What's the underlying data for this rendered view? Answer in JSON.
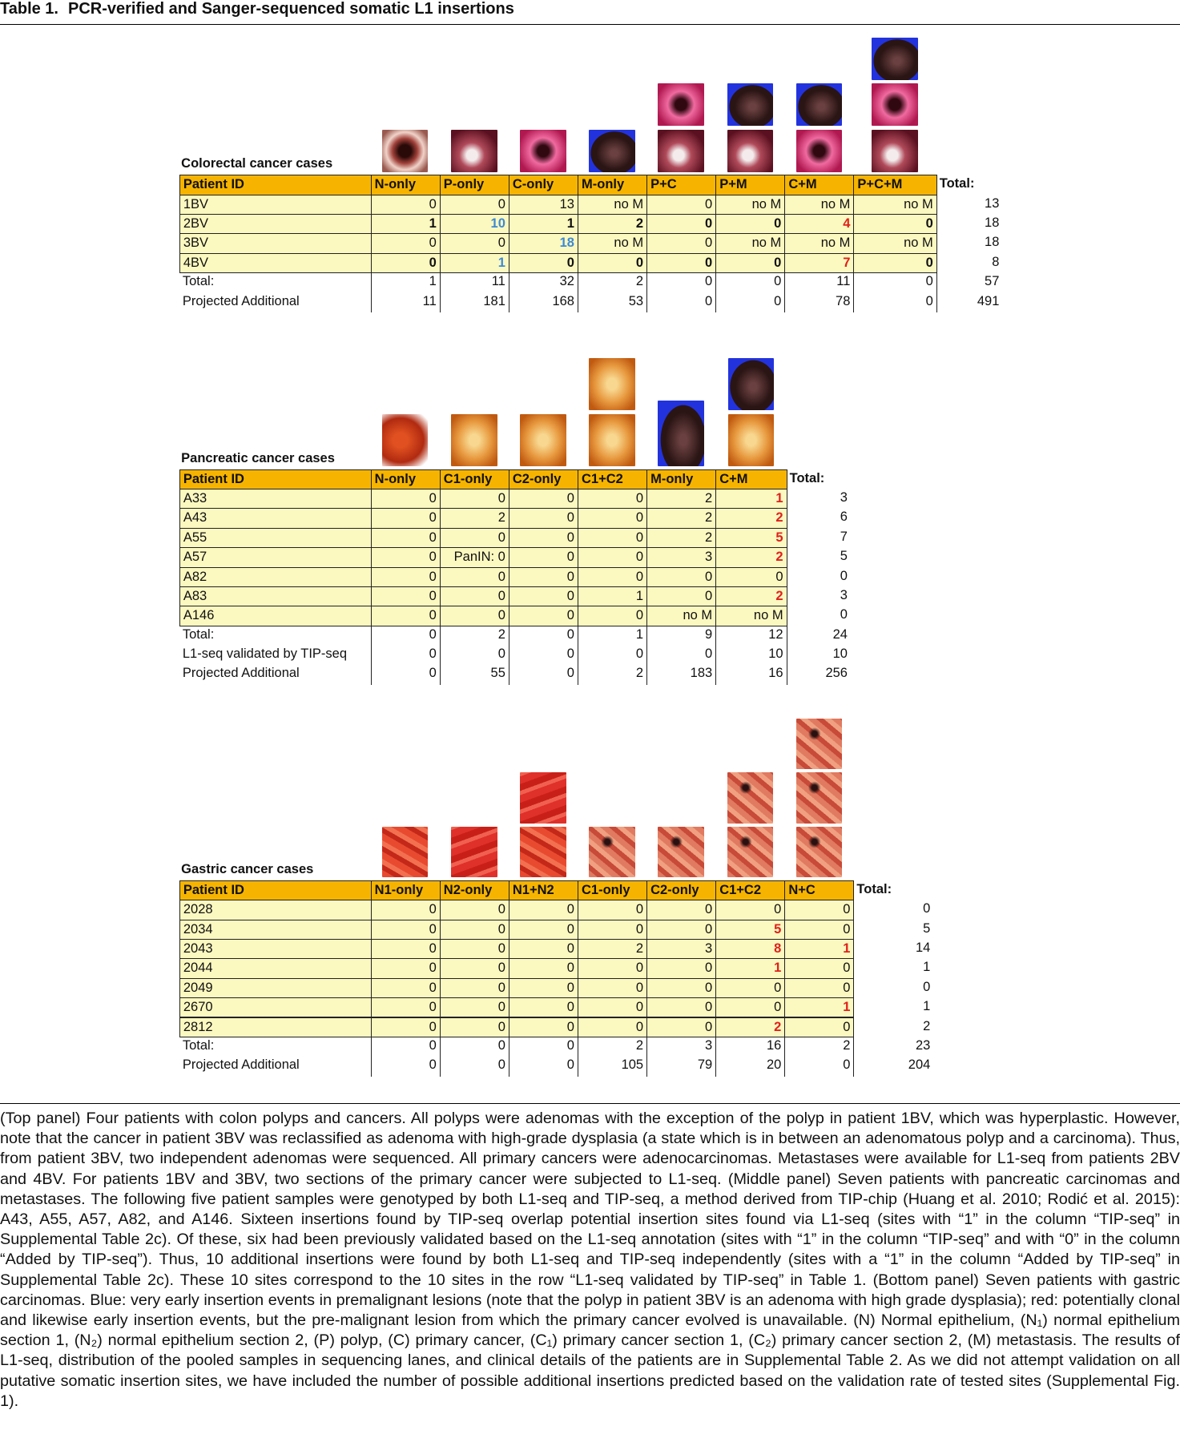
{
  "title": {
    "label": "Table 1.",
    "text": "PCR-verified and Sanger-sequenced somatic L1 insertions"
  },
  "panels": [
    {
      "label": "Colorectal cancer cases",
      "header": [
        "Patient ID",
        "N-only",
        "P-only",
        "C-only",
        "M-only",
        "P+C",
        "P+M",
        "C+M",
        "P+C+M"
      ],
      "total_header": "Total:",
      "rows": [
        {
          "id": "1BV",
          "cells": [
            "0",
            "0",
            "13",
            "no M",
            "0",
            "no M",
            "no M",
            "no M"
          ],
          "total": "13"
        },
        {
          "id": "2BV",
          "bold": true,
          "cells": [
            "1",
            {
              "text": "10",
              "color": "#3d8ad6"
            },
            "1",
            "2",
            "0",
            "0",
            {
              "text": "4",
              "color": "#e0211b"
            },
            "0"
          ],
          "total": "18"
        },
        {
          "id": "3BV",
          "cells": [
            "0",
            "0",
            {
              "text": "18",
              "color": "#3d8ad6"
            },
            "no M",
            "0",
            "no M",
            "no M",
            "no M"
          ],
          "total": "18"
        },
        {
          "id": "4BV",
          "bold": true,
          "cells": [
            "0",
            {
              "text": "1",
              "color": "#3d8ad6"
            },
            "0",
            "0",
            "0",
            "0",
            {
              "text": "7",
              "color": "#e0211b"
            },
            "0"
          ],
          "total": "8"
        }
      ],
      "summary": [
        {
          "id": "Total:",
          "cells": [
            "1",
            "11",
            "32",
            "2",
            "0",
            "0",
            "11",
            "0"
          ],
          "total": "57"
        },
        {
          "id": "Projected Additional",
          "cells": [
            "11",
            "181",
            "168",
            "53",
            "0",
            "0",
            "78",
            "0"
          ],
          "total": "491"
        }
      ]
    },
    {
      "label": "Pancreatic cancer cases",
      "header": [
        "Patient ID",
        "N-only",
        "C1-only",
        "C2-only",
        "C1+C2",
        "M-only",
        "C+M"
      ],
      "total_header": "Total:",
      "rows": [
        {
          "id": "A33",
          "cells": [
            "0",
            "0",
            "0",
            "0",
            "2",
            {
              "text": "1",
              "color": "#e0211b"
            }
          ],
          "total": "3"
        },
        {
          "id": "A43",
          "cells": [
            "0",
            "2",
            "0",
            "0",
            "2",
            {
              "text": "2",
              "color": "#e0211b"
            }
          ],
          "total": "6"
        },
        {
          "id": "A55",
          "cells": [
            "0",
            "0",
            "0",
            "0",
            "2",
            {
              "text": "5",
              "color": "#e0211b"
            }
          ],
          "total": "7"
        },
        {
          "id": "A57",
          "cells": [
            "0",
            "PanIN: 0",
            "0",
            "0",
            "3",
            {
              "text": "2",
              "color": "#e0211b"
            }
          ],
          "total": "5"
        },
        {
          "id": "A82",
          "cells": [
            "0",
            "0",
            "0",
            "0",
            "0",
            "0"
          ],
          "total": "0"
        },
        {
          "id": "A83",
          "cells": [
            "0",
            "0",
            "0",
            "1",
            "0",
            {
              "text": "2",
              "color": "#e0211b"
            }
          ],
          "total": "3"
        },
        {
          "id": "A146",
          "cells": [
            "0",
            "0",
            "0",
            "0",
            "no M",
            "no M"
          ],
          "total": "0"
        }
      ],
      "summary": [
        {
          "id": "Total:",
          "cells": [
            "0",
            "2",
            "0",
            "1",
            "9",
            "12"
          ],
          "total": "24"
        },
        {
          "id": "L1-seq validated by TIP-seq",
          "cells": [
            "0",
            "0",
            "0",
            "0",
            "0",
            "10"
          ],
          "total": "10"
        },
        {
          "id": "Projected Additional",
          "cells": [
            "0",
            "55",
            "0",
            "2",
            "183",
            "16"
          ],
          "total": "256"
        }
      ]
    },
    {
      "label": "Gastric cancer cases",
      "header": [
        "Patient ID",
        "N1-only",
        "N2-only",
        "N1+N2",
        "C1-only",
        "C2-only",
        "C1+C2",
        "N+C"
      ],
      "total_header": "Total:",
      "rows": [
        {
          "id": "2028",
          "cells": [
            "0",
            "0",
            "0",
            "0",
            "0",
            "0",
            "0"
          ],
          "total": "0"
        },
        {
          "id": "2034",
          "cells": [
            "0",
            "0",
            "0",
            "0",
            "0",
            {
              "text": "5",
              "color": "#e0211b"
            },
            "0"
          ],
          "total": "5"
        },
        {
          "id": "2043",
          "cells": [
            "0",
            "0",
            "0",
            "2",
            "3",
            {
              "text": "8",
              "color": "#e0211b"
            },
            {
              "text": "1",
              "color": "#e0211b"
            }
          ],
          "total": "14"
        },
        {
          "id": "2044",
          "cells": [
            "0",
            "0",
            "0",
            "0",
            "0",
            {
              "text": "1",
              "color": "#e0211b"
            },
            "0"
          ],
          "total": "1"
        },
        {
          "id": "2049",
          "cells": [
            "0",
            "0",
            "0",
            "0",
            "0",
            "0",
            "0"
          ],
          "total": "0"
        },
        {
          "id": "2670",
          "cells": [
            "0",
            "0",
            "0",
            "0",
            "0",
            "0",
            {
              "text": "1",
              "color": "#e0211b"
            }
          ],
          "total": "1"
        },
        {
          "id": "2812",
          "cells": [
            "0",
            "0",
            "0",
            "0",
            "0",
            {
              "text": "2",
              "color": "#e0211b"
            },
            "0"
          ],
          "total": "2"
        }
      ],
      "summary": [
        {
          "id": "Total:",
          "cells": [
            "0",
            "0",
            "0",
            "2",
            "3",
            "16",
            "2"
          ],
          "total": "23"
        },
        {
          "id": "Projected Additional",
          "cells": [
            "0",
            "0",
            "0",
            "105",
            "79",
            "20",
            "0"
          ],
          "total": "204"
        }
      ]
    }
  ],
  "caption": "(Top panel) Four patients with colon polyps and cancers. All polyps were adenomas with the exception of the polyp in patient 1BV, which was hyperplastic. However, note that the cancer in patient 3BV was reclassified as adenoma with high-grade dysplasia (a state which is in between an adenomatous polyp and a carcinoma). Thus, from patient 3BV, two independent adenomas were sequenced. All primary cancers were adenocarcinomas. Metastases were available for L1-seq from patients 2BV and 4BV. For patients 1BV and 3BV, two sections of the primary cancer were subjected to L1-seq. (Middle panel) Seven patients with pancreatic carcinomas and metastases. The following five patient samples were genotyped by both L1-seq and TIP-seq, a method derived from TIP-chip (Huang et al. 2010; Rodić et al. 2015): A43, A55, A57, A82, and A146. Sixteen insertions found by TIP-seq overlap potential insertion sites found via L1-seq (sites with “1” in the column “TIP-seq” in Supplemental Table 2c). Of these, six had been previously validated based on the L1-seq annotation (sites with “1” in the column “TIP-seq” and with “0” in the column “Added by TIP-seq”). Thus, 10 additional insertions were found by both L1-seq and TIP-seq independently (sites with a “1” in the column “Added by TIP-seq” in Supplemental Table 2c). These 10 sites correspond to the 10 sites in the row “L1-seq validated by TIP-seq” in Table 1. (Bottom panel) Seven patients with gastric carcinomas. Blue: very early insertion events in premalignant lesions (note that the polyp in patient 3BV is an adenoma with high grade dysplasia); red: potentially clonal and likewise early insertion events, but the pre-malignant lesion from which the primary cancer evolved is unavailable. (N) Normal epithelium, (N₁) normal epithelium section 1, (N₂) normal epithelium section 2, (P) polyp, (C) primary cancer, (C₁) primary cancer section 1, (C₂) primary cancer section 2, (M) metastasis. The results of L1-seq, distribution of the pooled samples in sequencing lanes, and clinical details of the patients are in Supplemental Table 2. As we did not attempt validation on all putative somatic insertion sites, we have included the number of possible additional insertions predicted based on the validation rate of tested sites (Supplemental Fig. 1)."
}
